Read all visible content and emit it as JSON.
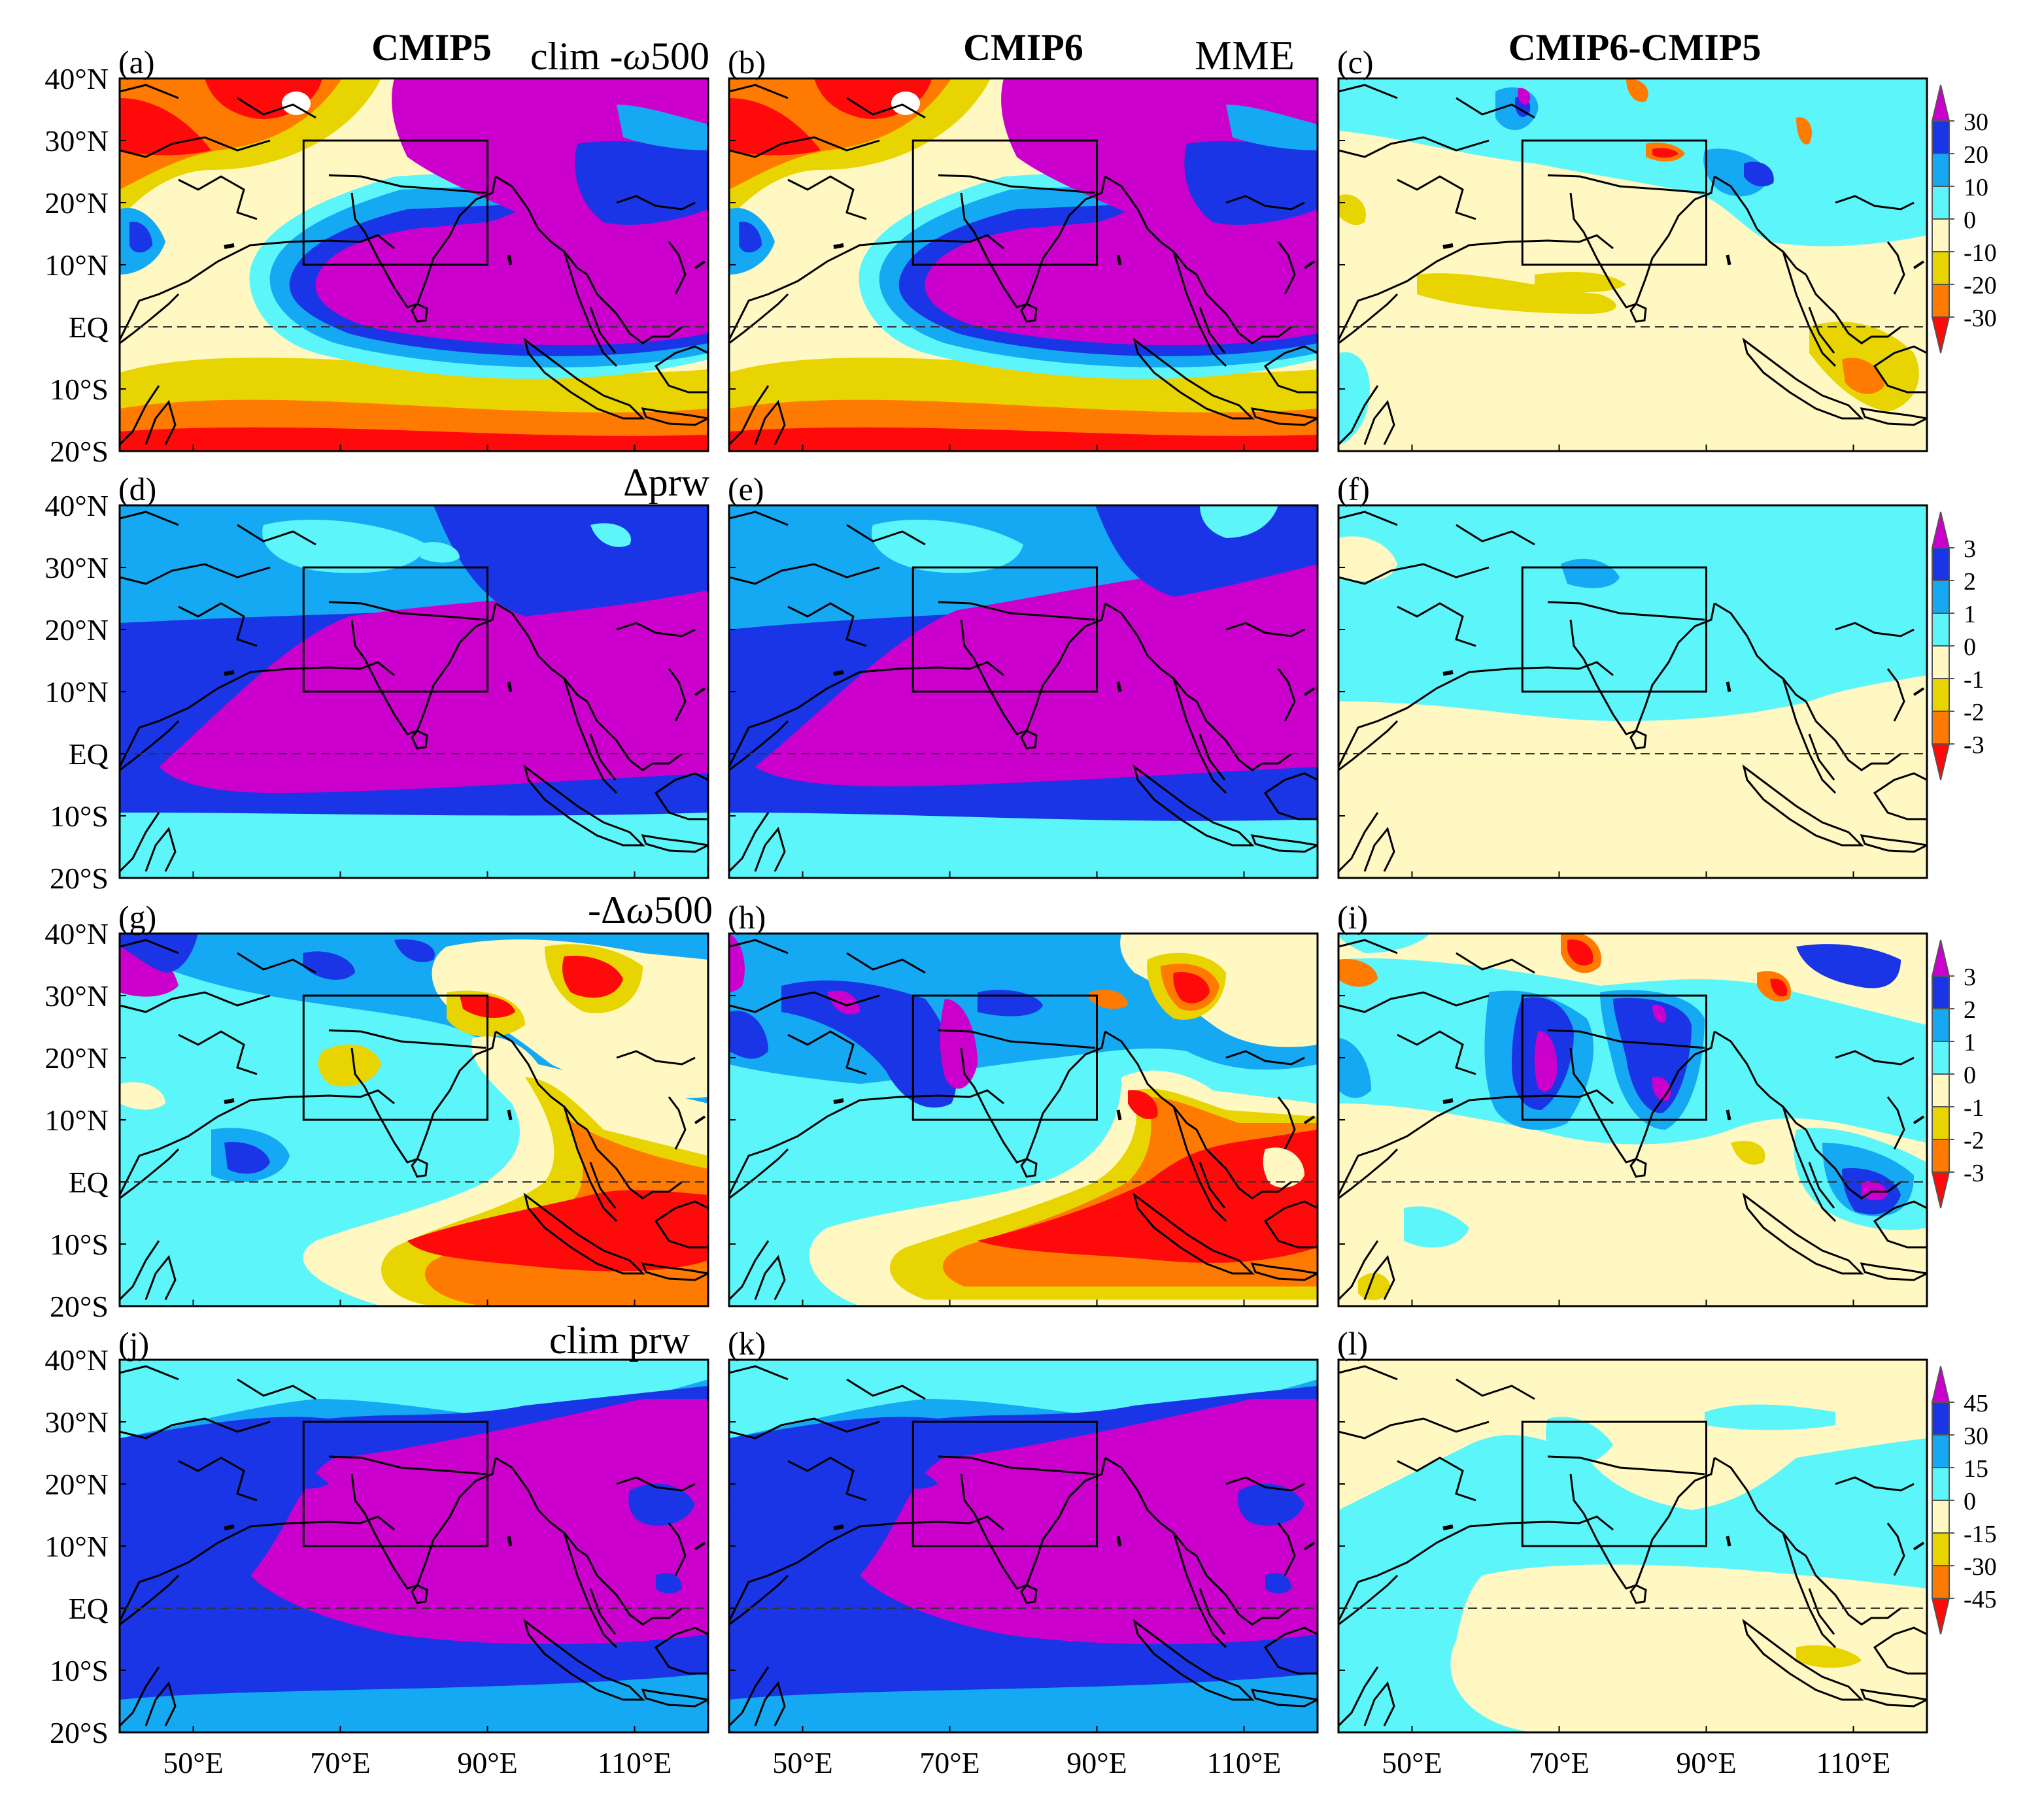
{
  "figure": {
    "column_titles": [
      "CMIP5",
      "CMIP6",
      "CMIP6-CMIP5"
    ],
    "mme_label": "MME",
    "lat_ticks": [
      "40°N",
      "30°N",
      "20°N",
      "10°N",
      "EQ",
      "10°S",
      "20°S"
    ],
    "lon_ticks": [
      "50°E",
      "70°E",
      "90°E",
      "110°E"
    ],
    "domain": {
      "lon": [
        40,
        120
      ],
      "lat": [
        -20,
        40
      ]
    },
    "box_region": {
      "lon": [
        65,
        90
      ],
      "lat": [
        10,
        30
      ]
    },
    "rows": [
      {
        "variable": "clim -ω500",
        "var_prefix": "clim -",
        "var_italic": "ω",
        "var_suffix": "500",
        "panels": [
          "(a)",
          "(b)",
          "(c)"
        ],
        "colorbar": [
          "30",
          "20",
          "10",
          "0",
          "-10",
          "-20",
          "-30"
        ]
      },
      {
        "variable": "Δprw",
        "var_prefix": "",
        "var_italic": "",
        "var_suffix": "Δprw",
        "panels": [
          "(d)",
          "(e)",
          "(f)"
        ],
        "colorbar": [
          "3",
          "2",
          "1",
          "0",
          "-1",
          "-2",
          "-3"
        ]
      },
      {
        "variable": "-Δω500",
        "var_prefix": "-Δ",
        "var_italic": "ω",
        "var_suffix": "500",
        "panels": [
          "(g)",
          "(h)",
          "(i)"
        ],
        "colorbar": [
          "3",
          "2",
          "1",
          "0",
          "-1",
          "-2",
          "-3"
        ]
      },
      {
        "variable": "clim prw",
        "var_prefix": "",
        "var_italic": "",
        "var_suffix": "clim prw",
        "panels": [
          "(j)",
          "(k)",
          "(l)"
        ],
        "colorbar": [
          "45",
          "30",
          "15",
          "0",
          "-15",
          "-30",
          "-45"
        ]
      }
    ],
    "palette": {
      "magenta": "#cc00cc",
      "blue": "#1a35e6",
      "sky": "#14a9f2",
      "cyan": "#5cf6fa",
      "cream": "#fff8c2",
      "yellow": "#e8d400",
      "orange": "#ff7a00",
      "red": "#ff0a0a",
      "white": "#ffffff"
    }
  }
}
